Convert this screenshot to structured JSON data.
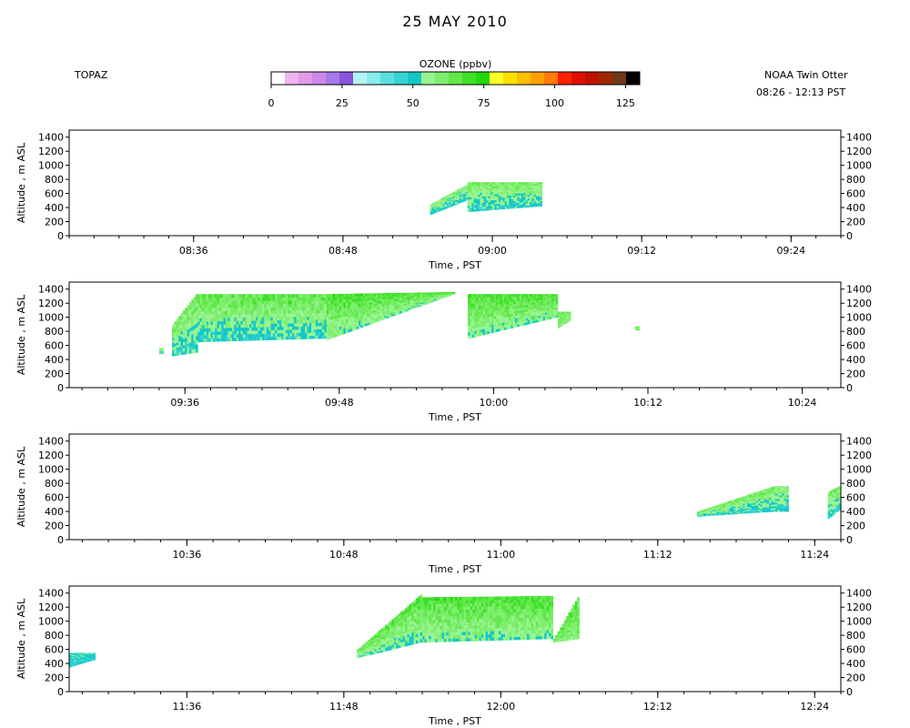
{
  "header": {
    "title": "25 MAY 2010",
    "left_label": "TOPAZ",
    "right_label_1": "NOAA Twin Otter",
    "right_label_2": "08:26 - 12:13 PST"
  },
  "colorbar": {
    "title": "OZONE (ppbv)",
    "min": 0,
    "max": 130,
    "ticks": [
      0,
      25,
      50,
      75,
      100,
      125
    ],
    "colors": [
      "#ffffff",
      "#f0b4f0",
      "#e39ae8",
      "#cc88e8",
      "#a878e6",
      "#8a55dc",
      "#b4f4f4",
      "#86ecec",
      "#5cdede",
      "#38d2d2",
      "#14c8c8",
      "#98f490",
      "#7eee6e",
      "#62e84a",
      "#3ee02a",
      "#22d80c",
      "#ffff28",
      "#ffe000",
      "#ffc000",
      "#ffa000",
      "#ff7c00",
      "#ff2000",
      "#e01000",
      "#c01000",
      "#a02800",
      "#703818",
      "#000000"
    ]
  },
  "chart_data": [
    {
      "type": "heatmap",
      "panel": 1,
      "xlabel": "Time , PST",
      "ylabel": "Altitude , m ASL",
      "xlim": [
        "08:26",
        "09:28"
      ],
      "ylim": [
        0,
        1500
      ],
      "y_ticks": [
        0,
        200,
        400,
        600,
        800,
        1000,
        1200,
        1400
      ],
      "x_ticks": [
        "08:36",
        "08:48",
        "09:00",
        "09:12",
        "09:24"
      ],
      "z_label": "OZONE (ppbv)",
      "segments": [
        {
          "start": "08:55",
          "end": "08:58",
          "bottom": [
            300,
            500
          ],
          "top": [
            450,
            720
          ],
          "ozone": [
            45,
            60
          ]
        },
        {
          "start": "08:58",
          "end": "09:04",
          "bottom": [
            340,
            420
          ],
          "top": [
            760,
            760
          ],
          "ozone": [
            45,
            62
          ]
        }
      ]
    },
    {
      "type": "heatmap",
      "panel": 2,
      "xlabel": "Time , PST",
      "ylabel": "Altitude , m ASL",
      "xlim": [
        "09:27",
        "10:27"
      ],
      "ylim": [
        0,
        1500
      ],
      "y_ticks": [
        0,
        200,
        400,
        600,
        800,
        1000,
        1200,
        1400
      ],
      "x_ticks": [
        "09:36",
        "09:48",
        "10:00",
        "10:12",
        "10:24"
      ],
      "z_label": "OZONE (ppbv)",
      "segments": [
        {
          "start": "09:34",
          "end": "09:34",
          "bottom": [
            480,
            480
          ],
          "top": [
            560,
            560
          ],
          "ozone": [
            48,
            60
          ]
        },
        {
          "start": "09:35",
          "end": "09:37",
          "bottom": [
            450,
            500
          ],
          "top": [
            900,
            1330
          ],
          "ozone": [
            45,
            62
          ]
        },
        {
          "start": "09:37",
          "end": "09:47",
          "bottom": [
            650,
            700
          ],
          "top": [
            1330,
            1330
          ],
          "ozone": [
            45,
            65
          ]
        },
        {
          "start": "09:47",
          "end": "09:57",
          "bottom": [
            680,
            1330
          ],
          "top": [
            1330,
            1360
          ],
          "ozone": [
            50,
            68
          ]
        },
        {
          "start": "09:58",
          "end": "10:05",
          "bottom": [
            700,
            1000
          ],
          "top": [
            1330,
            1330
          ],
          "ozone": [
            50,
            68
          ]
        },
        {
          "start": "10:05",
          "end": "10:06",
          "bottom": [
            850,
            950
          ],
          "top": [
            1080,
            1080
          ],
          "ozone": [
            58,
            62
          ]
        },
        {
          "start": "10:11",
          "end": "10:11",
          "bottom": [
            820,
            820
          ],
          "top": [
            870,
            870
          ],
          "ozone": [
            58,
            62
          ]
        }
      ]
    },
    {
      "type": "heatmap",
      "panel": 3,
      "xlabel": "Time , PST",
      "ylabel": "Altitude , m ASL",
      "xlim": [
        "10:27",
        "11:26"
      ],
      "ylim": [
        0,
        1500
      ],
      "y_ticks": [
        0,
        200,
        400,
        600,
        800,
        1000,
        1200,
        1400
      ],
      "x_ticks": [
        "10:36",
        "10:48",
        "11:00",
        "11:12",
        "11:24"
      ],
      "z_label": "OZONE (ppbv)",
      "segments": [
        {
          "start": "11:15",
          "end": "11:21",
          "bottom": [
            330,
            400
          ],
          "top": [
            400,
            760
          ],
          "ozone": [
            45,
            62
          ]
        },
        {
          "start": "11:21",
          "end": "11:22",
          "bottom": [
            400,
            400
          ],
          "top": [
            760,
            760
          ],
          "ozone": [
            45,
            60
          ]
        },
        {
          "start": "11:25",
          "end": "11:26",
          "bottom": [
            300,
            420
          ],
          "top": [
            680,
            760
          ],
          "ozone": [
            45,
            62
          ]
        }
      ]
    },
    {
      "type": "heatmap",
      "panel": 4,
      "xlabel": "Time , PST",
      "ylabel": "Altitude , m ASL",
      "xlim": [
        "11:27",
        "12:26"
      ],
      "ylim": [
        0,
        1500
      ],
      "y_ticks": [
        0,
        200,
        400,
        600,
        800,
        1000,
        1200,
        1400
      ],
      "x_ticks": [
        "11:36",
        "11:48",
        "12:00",
        "12:12",
        "12:24"
      ],
      "z_label": "OZONE (ppbv)",
      "segments": [
        {
          "start": "11:27",
          "end": "11:29",
          "bottom": [
            350,
            450
          ],
          "top": [
            550,
            550
          ],
          "ozone": [
            45,
            52
          ]
        },
        {
          "start": "11:49",
          "end": "11:54",
          "bottom": [
            480,
            700
          ],
          "top": [
            600,
            1380
          ],
          "ozone": [
            48,
            66
          ]
        },
        {
          "start": "11:54",
          "end": "12:04",
          "bottom": [
            700,
            750
          ],
          "top": [
            1340,
            1360
          ],
          "ozone": [
            50,
            68
          ]
        },
        {
          "start": "12:04",
          "end": "12:06",
          "bottom": [
            700,
            750
          ],
          "top": [
            750,
            1340
          ],
          "ozone": [
            55,
            66
          ]
        }
      ]
    }
  ]
}
